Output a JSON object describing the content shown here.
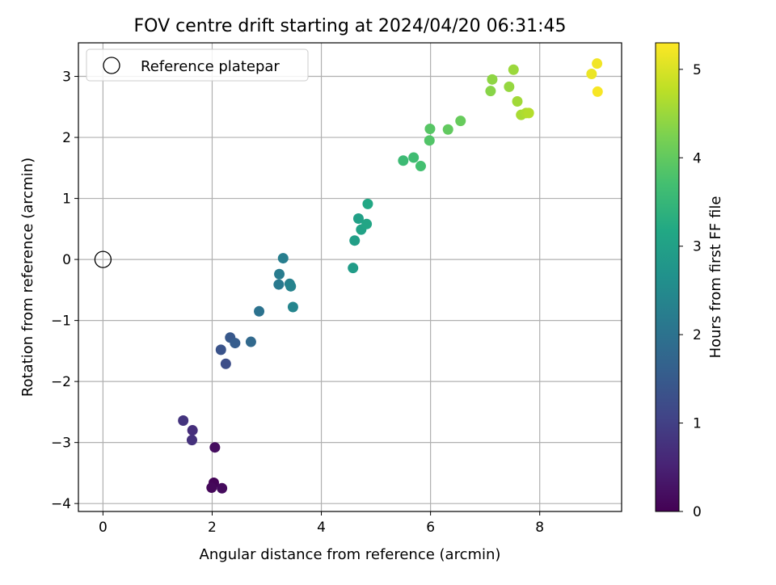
{
  "chart_data": {
    "type": "scatter",
    "title": "FOV centre drift starting at 2024/04/20 06:31:45",
    "xlabel": "Angular distance from reference (arcmin)",
    "ylabel": "Rotation from reference (arcmin)",
    "xlim": [
      -0.45,
      9.5
    ],
    "ylim": [
      -4.13,
      3.55
    ],
    "xticks": [
      0,
      2,
      4,
      6,
      8
    ],
    "yticks": [
      -4,
      -3,
      -2,
      -1,
      0,
      1,
      2,
      3
    ],
    "xtick_labels": [
      "0",
      "2",
      "4",
      "6",
      "8"
    ],
    "ytick_labels": [
      "−4",
      "−3",
      "−2",
      "−1",
      "0",
      "1",
      "2",
      "3"
    ],
    "grid": true,
    "legend": {
      "placement": "top-left",
      "entries": [
        {
          "label": "Reference platepar",
          "marker": "open-circle"
        }
      ]
    },
    "reference_point": {
      "x": 0,
      "y": 0
    },
    "colorbar": {
      "label": "Hours from first FF file",
      "range": [
        0,
        5.3
      ],
      "ticks": [
        0,
        1,
        2,
        3,
        4,
        5
      ],
      "tick_labels": [
        "0",
        "1",
        "2",
        "3",
        "4",
        "5"
      ],
      "colormap": "viridis"
    },
    "points": [
      {
        "x": 2.03,
        "y": -3.66,
        "hours": 0.05
      },
      {
        "x": 1.99,
        "y": -3.74,
        "hours": 0.1
      },
      {
        "x": 2.18,
        "y": -3.75,
        "hours": 0.15
      },
      {
        "x": 2.05,
        "y": -3.08,
        "hours": 0.2
      },
      {
        "x": 1.64,
        "y": -2.8,
        "hours": 0.7
      },
      {
        "x": 1.63,
        "y": -2.96,
        "hours": 0.75
      },
      {
        "x": 1.47,
        "y": -2.64,
        "hours": 0.8
      },
      {
        "x": 2.25,
        "y": -1.71,
        "hours": 1.25
      },
      {
        "x": 2.16,
        "y": -1.48,
        "hours": 1.35
      },
      {
        "x": 2.33,
        "y": -1.28,
        "hours": 1.45
      },
      {
        "x": 2.42,
        "y": -1.37,
        "hours": 1.55
      },
      {
        "x": 2.71,
        "y": -1.35,
        "hours": 1.8
      },
      {
        "x": 2.86,
        "y": -0.85,
        "hours": 2.0
      },
      {
        "x": 3.22,
        "y": -0.41,
        "hours": 2.15
      },
      {
        "x": 3.23,
        "y": -0.24,
        "hours": 2.2
      },
      {
        "x": 3.3,
        "y": 0.02,
        "hours": 2.25
      },
      {
        "x": 3.42,
        "y": -0.4,
        "hours": 2.3
      },
      {
        "x": 3.44,
        "y": -0.44,
        "hours": 2.35
      },
      {
        "x": 3.48,
        "y": -0.78,
        "hours": 2.4
      },
      {
        "x": 4.58,
        "y": -0.14,
        "hours": 2.9
      },
      {
        "x": 4.61,
        "y": 0.31,
        "hours": 2.95
      },
      {
        "x": 4.68,
        "y": 0.67,
        "hours": 3.0
      },
      {
        "x": 4.73,
        "y": 0.49,
        "hours": 3.05
      },
      {
        "x": 4.83,
        "y": 0.58,
        "hours": 3.1
      },
      {
        "x": 4.85,
        "y": 0.91,
        "hours": 3.15
      },
      {
        "x": 5.5,
        "y": 1.62,
        "hours": 3.6
      },
      {
        "x": 5.69,
        "y": 1.67,
        "hours": 3.65
      },
      {
        "x": 5.82,
        "y": 1.53,
        "hours": 3.7
      },
      {
        "x": 5.98,
        "y": 1.95,
        "hours": 3.85
      },
      {
        "x": 5.99,
        "y": 2.14,
        "hours": 3.9
      },
      {
        "x": 6.32,
        "y": 2.13,
        "hours": 4.0
      },
      {
        "x": 6.55,
        "y": 2.27,
        "hours": 4.05
      },
      {
        "x": 7.1,
        "y": 2.76,
        "hours": 4.35
      },
      {
        "x": 7.13,
        "y": 2.95,
        "hours": 4.4
      },
      {
        "x": 7.44,
        "y": 2.83,
        "hours": 4.45
      },
      {
        "x": 7.52,
        "y": 3.11,
        "hours": 4.5
      },
      {
        "x": 7.59,
        "y": 2.59,
        "hours": 4.55
      },
      {
        "x": 7.66,
        "y": 2.37,
        "hours": 4.6
      },
      {
        "x": 7.75,
        "y": 2.4,
        "hours": 4.65
      },
      {
        "x": 7.8,
        "y": 2.4,
        "hours": 4.7
      },
      {
        "x": 8.95,
        "y": 3.04,
        "hours": 5.15
      },
      {
        "x": 9.05,
        "y": 3.21,
        "hours": 5.2
      },
      {
        "x": 9.06,
        "y": 2.75,
        "hours": 5.25
      }
    ]
  }
}
